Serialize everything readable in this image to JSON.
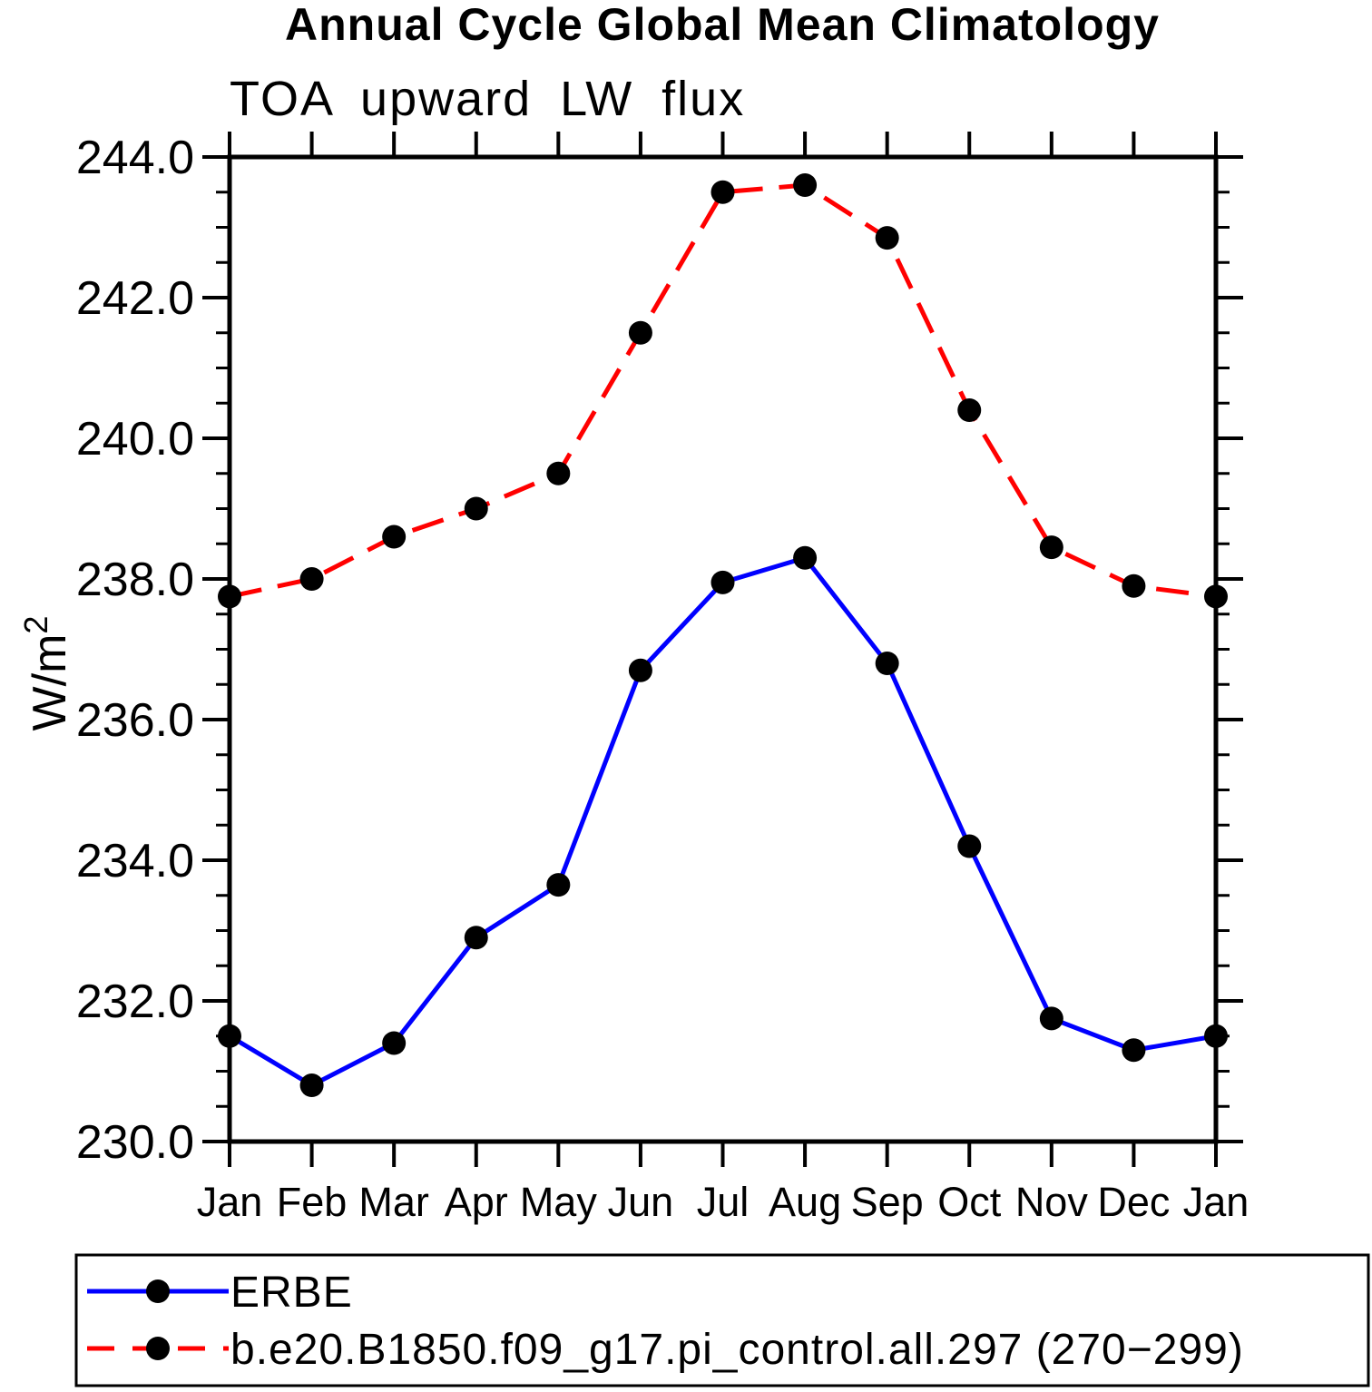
{
  "chart_data": {
    "type": "line",
    "title": "Annual Cycle Global Mean Climatology",
    "subtitle": "TOA upward LW flux",
    "ylabel": "W/m²",
    "ylabel_base": "W/m",
    "ylabel_exponent": "2",
    "categories": [
      "Jan",
      "Feb",
      "Mar",
      "Apr",
      "May",
      "Jun",
      "Jul",
      "Aug",
      "Sep",
      "Oct",
      "Nov",
      "Dec",
      "Jan"
    ],
    "ylim": [
      230.0,
      244.0
    ],
    "ytick_step": 2.0,
    "yminor_step": 0.5,
    "ytick_labels": [
      "244.0",
      "242.0",
      "240.0",
      "238.0",
      "236.0",
      "234.0",
      "232.0",
      "230.0"
    ],
    "grid": false,
    "legend_position": "bottom-box",
    "axis_color": "#000000",
    "marker_color": "#000000",
    "series": [
      {
        "name": "ERBE",
        "line_color": "#0000ff",
        "line_style": "solid",
        "marker": "filled-circle",
        "values": [
          231.5,
          230.8,
          231.4,
          232.9,
          233.65,
          236.7,
          237.95,
          238.3,
          236.8,
          234.2,
          231.75,
          231.3,
          231.5
        ]
      },
      {
        "name": "b.e20.B1850.f09_g17.pi_control.all.297 (270−299)",
        "line_color": "#ff0000",
        "line_style": "dashed",
        "marker": "filled-circle",
        "values": [
          237.75,
          238.0,
          238.6,
          239.0,
          239.5,
          241.5,
          243.5,
          243.6,
          242.85,
          240.4,
          238.45,
          237.9,
          237.75
        ]
      }
    ]
  }
}
